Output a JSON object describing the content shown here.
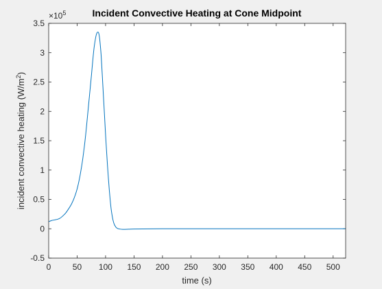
{
  "chart_data": {
    "type": "line",
    "title": "Incident Convective Heating at Cone Midpoint",
    "xlabel": "time (s)",
    "ylabel": "incident convective heating (W/m",
    "ylabel_superscript": "2",
    "ylabel_suffix": ")",
    "y_exponent_base": "×10",
    "y_exponent": "5",
    "xlim": [
      0,
      522
    ],
    "ylim": [
      -0.5,
      3.5
    ],
    "x_ticks": [
      0,
      50,
      100,
      150,
      200,
      250,
      300,
      350,
      400,
      450,
      500
    ],
    "x_tick_labels": [
      "0",
      "50",
      "100",
      "150",
      "200",
      "250",
      "300",
      "350",
      "400",
      "450",
      "500"
    ],
    "y_ticks": [
      -0.5,
      0,
      0.5,
      1,
      1.5,
      2,
      2.5,
      3,
      3.5
    ],
    "y_tick_labels": [
      "-0.5",
      "0",
      "0.5",
      "1",
      "1.5",
      "2",
      "2.5",
      "3",
      "3.5"
    ],
    "grid": false,
    "line_color": "#0072bd",
    "series": [
      {
        "x": [
          0,
          5,
          10,
          15,
          20,
          25,
          30,
          35,
          40,
          45,
          50,
          55,
          60,
          65,
          70,
          75,
          78,
          80,
          83,
          85,
          87,
          88,
          89,
          90,
          92,
          94,
          96,
          98,
          100,
          102,
          105,
          108,
          110,
          113,
          116,
          120,
          125,
          130,
          140,
          150,
          200,
          250,
          300,
          400,
          500,
          522
        ],
        "y": [
          0.12,
          0.14,
          0.15,
          0.16,
          0.18,
          0.22,
          0.27,
          0.34,
          0.42,
          0.53,
          0.68,
          0.9,
          1.2,
          1.6,
          2.1,
          2.6,
          2.92,
          3.1,
          3.28,
          3.34,
          3.35,
          3.33,
          3.28,
          3.2,
          2.98,
          2.65,
          2.3,
          1.95,
          1.6,
          1.28,
          0.85,
          0.5,
          0.32,
          0.15,
          0.06,
          0.01,
          -0.005,
          -0.01,
          -0.008,
          -0.005,
          0.0,
          0.0,
          0.0,
          0.0,
          0.0,
          0.0
        ]
      }
    ]
  }
}
